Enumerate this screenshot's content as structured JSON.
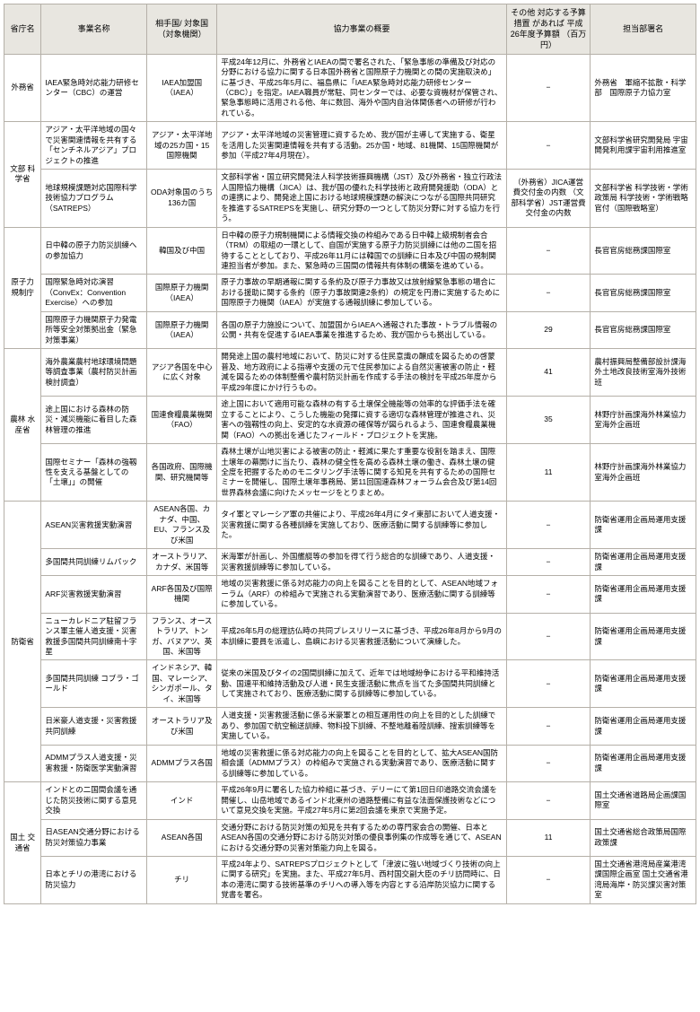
{
  "headers": {
    "ministry": "省庁名",
    "project": "事業名称",
    "partner": "相手国/\n対象国\n（対象機関）",
    "summary": "協力事業の概要",
    "budget": "その他\n対応する予算措置\nがあれば\n平成26年度予算額\n（百万円）",
    "dept": "担当部署名"
  },
  "mofa": {
    "name": "外務省",
    "r1": {
      "project": "IAEA緊急時対応能力研修センター（CBC）の運営",
      "partner": "IAEA加盟国（IAEA）",
      "summary": "平成24年12月に、外務省とIAEAの間で署名された、「緊急事態の準備及び対応の分野における協力に関する日本国外務省と国際原子力機関との間の実施取決め」に基づき、平成25年5月に、福島県に「IAEA緊急時対応能力研修センター（CBC）」を指定。IAEA職員が常駐、同センターでは、必要な資機材が保管され、緊急事態時に活用される他、年に数回、海外や国内自治体関係者への研修が行われている。",
      "budget": "−",
      "dept": "外務省　軍縮不拡散・科学部　国際原子力協力室"
    }
  },
  "mext": {
    "name": "文部\n科学省",
    "r1": {
      "project": "アジア・太平洋地域の国々で災害関連情報を共有する「センチネルアジア」プロジェクトの推進",
      "partner": "アジア・太平洋地域の25カ国・15国際機関",
      "summary": "アジア・太平洋地域の災害管理に資するため、我が国が主導して実施する、衛星を活用した災害関連情報を共有する活動。25か国・地域、81機関、15国際機関が参加（平成27年4月現在）。",
      "budget": "−",
      "dept": "文部科学省研究開発局\n宇宙開発利用課宇宙利用推進室"
    },
    "r2": {
      "project": "地球規模課題対応国際科学技術協力プログラム（SATREPS）",
      "partner": "ODA対象国のうち136カ国",
      "summary": "文部科学省・国立研究開発法人科学技術振興機構（JST）及び外務省・独立行政法人国際協力機構（JICA）は、我が国の優れた科学技術と政府開発援助（ODA）との連携により、開発途上国における地球規模課題の解決につながる国際共同研究を推進するSATREPSを実施し、研究分野の一つとして防災分野に対する協力を行う。",
      "budget": "（外務省）JICA運営費交付金の内数\n（文部科学省）JST運営費交付金の内数",
      "dept": "文部科学省\n科学技術・学術政策局\n科学技術・学術戦略官付（国際戦略室）"
    }
  },
  "nra": {
    "name": "原子力\n規制庁",
    "r1": {
      "project": "日中韓の原子力防災訓練への参加協力",
      "partner": "韓国及び中国",
      "summary": "日中韓の原子力規制機関による情報交換の枠組みである日中韓上級規制者会合（TRM）の取組の一環として、自国が実施する原子力防災訓練には他の二国を招待することとしており、平成26年11月には韓国での訓練に日本及び中国の規制関連担当者が参加。また、緊急時の三国間の情報共有体制の構築を進めている。",
      "budget": "−",
      "dept": "長官官房総務課国際室"
    },
    "r2": {
      "project": "国際緊急時対応演習（ConvEx：Convention Exercise）への参加",
      "partner": "国際原子力機関（IAEA）",
      "summary": "原子力事故の早期通報に関する条約及び原子力事故又は放射線緊急事態の場合における援助に関する条約（原子力事故関連2条約）の規定を円滑に実施するために国際原子力機関（IAEA）が実施する通報訓練に参加している。",
      "budget": "−",
      "dept": "長官官房総務課国際室"
    },
    "r3": {
      "project": "国際原子力機関原子力発電所等安全対策拠出金（緊急対策事業）",
      "partner": "国際原子力機関（IAEA）",
      "summary": "各国の原子力施設について、加盟国からIAEAへ通報された事故・トラブル情報の公開・共有を促進するIAEA事業を推進するため、我が国からも拠出している。",
      "budget": "29",
      "dept": "長官官房総務課国際室"
    }
  },
  "maff": {
    "name": "農林\n水産省",
    "r1": {
      "project": "海外農業農村地球環境問題等調査事業（農村防災計画検討調査）",
      "partner": "アジア各国を中心に広く対象",
      "summary": "開発途上国の農村地域において、防災に対する住民意識の醸成を図るための啓蒙普及、地方政府による指導や支援の元で住民参加による自然災害被害の防止・軽減を図るための体制整備や農村防災計画を作成する手法の検討を平成25年度から平成29年度にかけ行うもの。",
      "budget": "41",
      "dept": "農村振興局整備部設計課海外土地改良技術室海外技術班"
    },
    "r2": {
      "project": "途上国における森林の防災・減災機能に着目した森林管理の推進",
      "partner": "国連食糧農業機関（FAO）",
      "summary": "途上国において適用可能な森林の有する土壌保全機能等の効率的な評価手法を確立することにより、こうした機能の発揮に資する適切な森林管理が推進され、災害への強靱性の向上、安定的な水資源の確保等が図られるよう、国連食糧農業機関（FAO）への拠出を通じたフィールド・プロジェクトを実施。",
      "budget": "35",
      "dept": "林野庁計画課海外林業協力室海外企画班"
    },
    "r3": {
      "project": "国際セミナー「森林の強靱性を支える基盤としての「土壌」」の開催",
      "partner": "各国政府、国際機関、研究機関等",
      "summary": "森林土壌が山地災害による被害の防止・軽減に果たす重要な役割を踏まえ、国際土壌年の幕開けに当たり、森林の健全性を高める森林土壌の働き、森林土壌の健全度を把握するためのモニタリング手法等に関する知見を共有するための国際セミナーを開催し、国際土壌年事務局、第11回国連森林フォーラム会合及び第14回世界森林会議に向けたメッセージをとりまとめ。",
      "budget": "11",
      "dept": "林野庁計画課海外林業協力室海外企画班"
    }
  },
  "mod": {
    "name": "防衛省",
    "r1": {
      "project": "ASEAN災害救援実動演習",
      "partner": "ASEAN各国、カナダ、中国、EU、フランス及び米国",
      "summary": "タイ軍とマレーシア軍の共催により、平成26年4月にタイ東部において人道支援・災害救援に関する各種訓練を実施しており、医療活動に関する訓練等に参加した。",
      "budget": "−",
      "dept": "防衛省運用企画局運用支援課"
    },
    "r2": {
      "project": "多国間共同訓練リムパック",
      "partner": "オーストラリア、カナダ、米国等",
      "summary": "米海軍が計画し、外国艦艇等の参加を得て行う総合的な訓練であり、人道支援・災害救援訓練等に参加している。",
      "budget": "−",
      "dept": "防衛省運用企画局運用支援課"
    },
    "r3": {
      "project": "ARF災害救援実動演習",
      "partner": "ARF各国及び国際機関",
      "summary": "地域の災害救援に係る対応能力の向上を図ることを目的として、ASEAN地域フォーラム（ARF）の枠組みで実施される実動演習であり、医療活動に関する訓練等に参加している。",
      "budget": "−",
      "dept": "防衛省運用企画局運用支援課"
    },
    "r4": {
      "project": "ニューカレドニア駐留フランス軍主催人道支援・災害救援多国間共同訓練南十字星",
      "partner": "フランス、オーストラリア、トンガ、バヌアツ、英国、米国等",
      "summary": "平成26年5月の総理訪仏時の共同プレスリリースに基づき、平成26年8月から9月の本訓練に要員を派遣し、島嶼における災害救援活動について演練した。",
      "budget": "−",
      "dept": "防衛省運用企画局運用支援課"
    },
    "r5": {
      "project": "多国間共同訓練\nコブラ・ゴールド",
      "partner": "インドネシア、韓国、マレーシア、シンガポール、タイ、米国等",
      "summary": "従来の米国及びタイの2国間訓練に加えて、近年では地域紛争における平和維持活動、国連平和維持活動及び人道・民生支援活動に焦点を当てた多国間共同訓練として実施されており、医療活動に関する訓練等に参加している。",
      "budget": "−",
      "dept": "防衛省運用企画局運用支援課"
    },
    "r6": {
      "project": "日米豪人道支援・災害救援共同訓練",
      "partner": "オーストラリア及び米国",
      "summary": "人道支援・災害救援活動に係る米豪軍との相互運用性の向上を目的とした訓練であり、参加国で航空輸送訓練、物料投下訓練、不整地離着陸訓練、搜索訓練等を実施している。",
      "budget": "−",
      "dept": "防衛省運用企画局運用支援課"
    },
    "r7": {
      "project": "ADMMプラス人道支援・災害救援・防衛医学実動演習",
      "partner": "ADMMプラス各国",
      "summary": "地域の災害救援に係る対応能力の向上を図ることを目的として、拡大ASEAN国防相会議（ADMMプラス）の枠組みで実施される実動演習であり、医療活動に関する訓練等に参加している。",
      "budget": "−",
      "dept": "防衛省運用企画局運用支援課"
    }
  },
  "mlit": {
    "name": "国土\n交通省",
    "r1": {
      "project": "インドとの二国間会議を通じた防災技術に関する意見交換",
      "partner": "インド",
      "summary": "平成26年9月に署名した協力枠組に基づき、デリーにて第1回日印道路交流会議を開催し、山岳地域であるインド北東州の道路整備に有益な法面保護技術などについて意見交換を実施。平成27年5月に第2回会議を東京で実施予定。",
      "budget": "−",
      "dept": "国土交通省道路局企画課国際室"
    },
    "r2": {
      "project": "日ASEAN交通分野における防災対策協力事業",
      "partner": "ASEAN各国",
      "summary": "交通分野における防災対策の知見を共有するための専門家会合の開催、日本とASEAN各国の交通分野における防災対策の優良事例集の作成等を通じて、ASEANにおける交通分野の災害対策能力向上を図る。",
      "budget": "11",
      "dept": "国土交通省総合政策局国際政策課"
    },
    "r3": {
      "project": "日本とチリの港湾における防災協力",
      "partner": "チリ",
      "summary": "平成24年より、SATREPSプロジェクトとして「津波に強い地域づくり技術の向上に関する研究」を実施。また、平成27年5月、西村国交副大臣のチリ訪問時に、日本の港湾に関する技術基準のチリへの導入等を内容とする沿岸防災協力に関する覚書を署名。",
      "budget": "−",
      "dept": "国土交通省港湾局産業港湾課国際企画室\n国土交通省港湾局海岸・防災課災害対策室"
    }
  }
}
